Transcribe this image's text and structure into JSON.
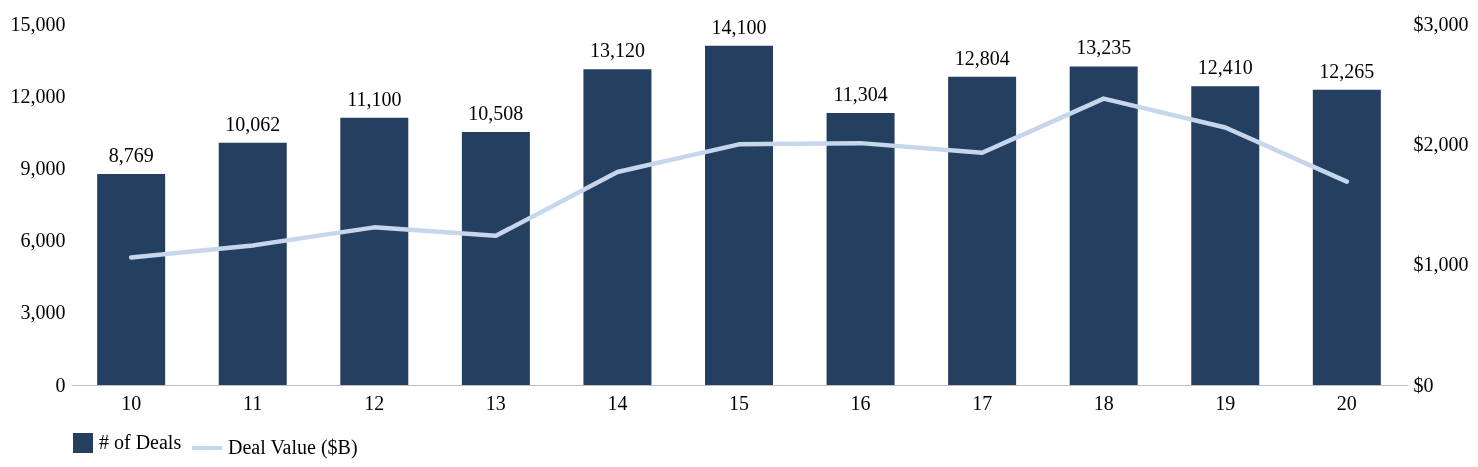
{
  "chart_data": {
    "type": "bar",
    "categories": [
      "10",
      "11",
      "12",
      "13",
      "14",
      "15",
      "16",
      "17",
      "18",
      "19",
      "20"
    ],
    "series": [
      {
        "name": "# of Deals",
        "color": "#243f60",
        "values": [
          8769,
          10062,
          11100,
          10508,
          13120,
          14100,
          11304,
          12804,
          13235,
          12410,
          12265
        ],
        "value_labels": [
          "8,769",
          "10,062",
          "11,100",
          "10,508",
          "13,120",
          "14,100",
          "11,304",
          "12,804",
          "13,235",
          "12,410",
          "12,265"
        ]
      },
      {
        "name": "Deal Value ($B)",
        "type": "line",
        "axis": "y2",
        "color": "#c6d6ec",
        "values": [
          1060,
          1160,
          1310,
          1240,
          1770,
          2000,
          2010,
          1930,
          2380,
          2140,
          1690
        ]
      }
    ],
    "ylim": [
      0,
      15000
    ],
    "yticks": [
      {
        "value": 0,
        "label": "0"
      },
      {
        "value": 3000,
        "label": "3,000"
      },
      {
        "value": 6000,
        "label": "6,000"
      },
      {
        "value": 9000,
        "label": "9,000"
      },
      {
        "value": 12000,
        "label": "12,000"
      },
      {
        "value": 15000,
        "label": "15,000"
      }
    ],
    "y2lim": [
      0,
      3000
    ],
    "y2ticks": [
      {
        "value": 0,
        "label": "$0"
      },
      {
        "value": 1000,
        "label": "$1,000"
      },
      {
        "value": 2000,
        "label": "$2,000"
      },
      {
        "value": 3000,
        "label": "$3,000"
      }
    ],
    "legend": "bottom",
    "grid": false,
    "line_style": "solid",
    "marker": "none"
  }
}
